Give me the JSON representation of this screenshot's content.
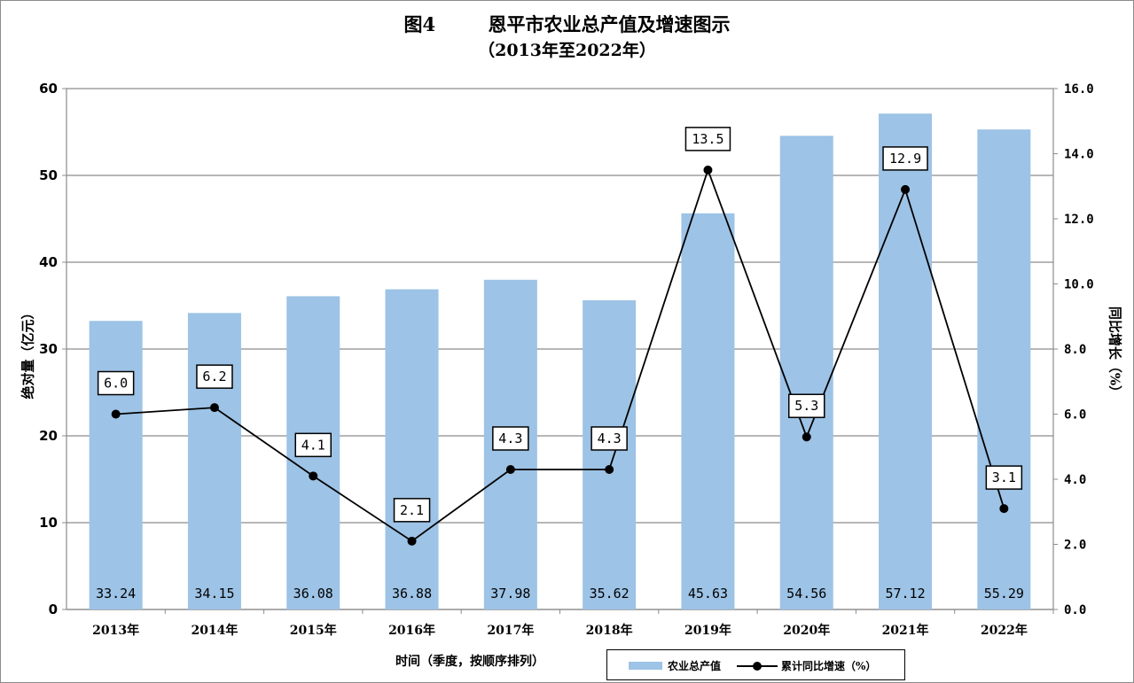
{
  "title": {
    "number": "图4",
    "text": "恩平市农业总产值及增速图示",
    "subtitle": "（2013年至2022年）"
  },
  "axes": {
    "y_left_label": "绝对量（亿元）",
    "y_right_label": "同比增长（%）",
    "x_label": "时间（季度，按顺序排列）"
  },
  "legend": {
    "bar_label": "农业总产值",
    "line_label": "累计同比增速（%）"
  },
  "colors": {
    "bar": "#9dc3e6",
    "line": "#000000",
    "grid": "#8c8c8c"
  },
  "chart_data": {
    "type": "bar+line",
    "categories": [
      "2013年",
      "2014年",
      "2015年",
      "2016年",
      "2017年",
      "2018年",
      "2019年",
      "2020年",
      "2021年",
      "2022年"
    ],
    "series": [
      {
        "name": "农业总产值",
        "type": "bar",
        "axis": "left",
        "values": [
          33.24,
          34.15,
          36.08,
          36.88,
          37.98,
          35.62,
          45.63,
          54.56,
          57.12,
          55.29
        ],
        "labels": [
          "33.24",
          "34.15",
          "36.08",
          "36.88",
          "37.98",
          "35.62",
          "45.63",
          "54.56",
          "57.12",
          "55.29"
        ]
      },
      {
        "name": "累计同比增速（%）",
        "type": "line",
        "axis": "right",
        "values": [
          6.0,
          6.2,
          4.1,
          2.1,
          4.3,
          4.3,
          13.5,
          5.3,
          12.9,
          3.1
        ],
        "labels": [
          "6.0",
          "6.2",
          "4.1",
          "2.1",
          "4.3",
          "4.3",
          "13.5",
          "5.3",
          "12.9",
          "3.1"
        ]
      }
    ],
    "y_left": {
      "min": 0,
      "max": 60,
      "ticks": [
        "0",
        "10",
        "20",
        "30",
        "40",
        "50",
        "60"
      ]
    },
    "y_right": {
      "min": 0,
      "max": 16,
      "ticks": [
        "0.0",
        "2.0",
        "4.0",
        "6.0",
        "8.0",
        "10.0",
        "12.0",
        "14.0",
        "16.0"
      ]
    },
    "grid": true,
    "legend_position": "bottom-right"
  }
}
